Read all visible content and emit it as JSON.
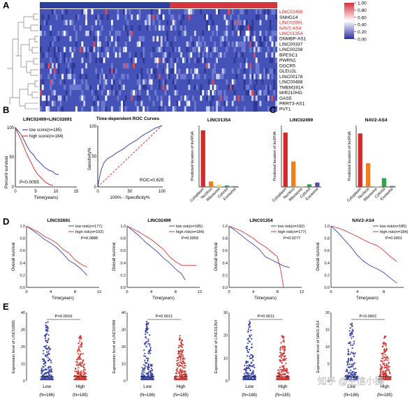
{
  "panel_labels": {
    "A": "A",
    "B": "B",
    "C": "C",
    "D": "D",
    "E": "E"
  },
  "heatmap": {
    "genes": [
      "LINC02499",
      "SNHG14",
      "LINC02691",
      "NAV2-AS4",
      "LINC01354",
      "DNMBP-AS1",
      "LINC00337",
      "LINC00238",
      "BPESC1",
      "PWRN1",
      "DGCR5",
      "DLEU2L",
      "LINC00178",
      "LINC00488",
      "TMEM191A",
      "MIR210HG",
      "GAS5",
      "PRRT3-AS1",
      "PVT1"
    ],
    "highlighted": [
      "LINC02499",
      "LINC02691",
      "NAV2-AS4",
      "LINC01354"
    ],
    "legend_ticks": [
      "1.00",
      "0.80",
      "0.60",
      "0.40",
      "0.20",
      "0.00"
    ],
    "colors": {
      "high": "#d7303a",
      "mid": "#ffffff",
      "low": "#2b2fa0",
      "bar_low": "#2c3f9e",
      "bar_high": "#d3363f",
      "gene_highlight": "#d92226"
    }
  },
  "panel_b": {
    "km": {
      "title": "LINC02499+LINC02691",
      "ylabel": "Percent survival",
      "xlabel": "Time(years)",
      "legend": [
        "low score(n=185)",
        "high score(n=184)"
      ],
      "pvalue": "P<0.0055",
      "x_ticks": [
        "0",
        "5",
        "10",
        "15"
      ],
      "y_ticks": [
        "0",
        "50",
        "100"
      ]
    },
    "roc": {
      "title": "Time-dependent ROC Curves",
      "ylabel": "Sensitivity%",
      "xlabel": "100% - Specificity%",
      "auc": "ROC=0.625",
      "x_ticks": [
        "0",
        "50",
        "100"
      ],
      "y_ticks": [
        "0",
        "50",
        "100"
      ]
    }
  },
  "panel_d": {
    "ylabel": "Overall survival",
    "xlabel": "Time(years)",
    "x_ticks": [
      "0",
      "4",
      "8",
      "12"
    ],
    "x_ticks_short": [
      "0",
      "4",
      "8"
    ],
    "y_ticks": [
      "0.0",
      "0.2",
      "0.4",
      "0.6",
      "0.8",
      "1.0"
    ],
    "plots": [
      {
        "title": "LINC02691",
        "legend": [
          "low risk(n=177)",
          "high risk(n=192)"
        ],
        "pvalue": "P=0.0888"
      },
      {
        "title": "LINC02499",
        "legend": [
          "low risk(n=185)",
          "high risk(n=184)"
        ],
        "pvalue": "P=0.0059"
      },
      {
        "title": "LINC01354",
        "legend": [
          "low risk(n=192)",
          "high risk(n=177)"
        ],
        "pvalue": "P=0.0277"
      },
      {
        "title": "NAV2-AS4",
        "legend": [
          "low risk(n=185)",
          "high risk(n=184)"
        ],
        "pvalue": "P=0.0001"
      }
    ]
  },
  "panel_e": {
    "groups": [
      "Low",
      "High"
    ],
    "plots": [
      {
        "ylabel": "Expression level of LINC02691",
        "pvalue": "P=0.0016",
        "y_ticks": [
          "0",
          "10",
          "20",
          "30",
          "40"
        ],
        "n": [
          "(N=186)",
          "(N=185)"
        ]
      },
      {
        "ylabel": "Expression level of LINC02499",
        "pvalue": "P=0.0011",
        "y_ticks": [
          "0",
          "10",
          "20",
          "30",
          "40"
        ],
        "n": [
          "(N=186)",
          "(N=185)"
        ]
      },
      {
        "ylabel": "Expression level of LINC01354",
        "pvalue": "P=0.0011",
        "y_ticks": [
          "0",
          "10",
          "20",
          "30"
        ],
        "n": [
          "(N=186)",
          "(N=185)"
        ]
      },
      {
        "ylabel": "Expression level of NAV2-AS4",
        "pvalue": "P<0.0001",
        "y_ticks": [
          "0",
          "5",
          "10",
          "15",
          "20"
        ],
        "n": [
          "(N=186)",
          "(N=185)"
        ]
      }
    ]
  },
  "chart_data": [
    {
      "type": "bar",
      "title": "LINC01354",
      "ylabel": "Predicted location of lncRNA",
      "categories": [
        "Cytoplasm",
        "Nucleus",
        "Ribosome",
        "Cytosol",
        "Exosome"
      ],
      "values": [
        0.83,
        0.08,
        0.03,
        0.02,
        0.01
      ],
      "colors": [
        "#d62a2a",
        "#f07e1c",
        "#f3e53f",
        "#2ea34a",
        "#5b4ea3"
      ],
      "ylim": [
        0,
        0.9
      ]
    },
    {
      "type": "bar",
      "title": "LINC02499",
      "ylabel": "Predicted location of lncRNA",
      "categories": [
        "Cytoplasm",
        "Nucleus",
        "Ribosome",
        "Cytosol",
        "Exosome"
      ],
      "values": [
        0.62,
        0.29,
        0.01,
        0.03,
        0.05
      ],
      "colors": [
        "#d62a2a",
        "#f07e1c",
        "#f3e53f",
        "#2ea34a",
        "#5b4ea3"
      ],
      "ylim": [
        0,
        0.7
      ]
    },
    {
      "type": "bar",
      "title": "NAV2-AS4",
      "ylabel": "Predicted location of lncRNA",
      "categories": [
        "Cytoplasm",
        "Nucleus",
        "Ribosome",
        "Cytosol",
        "Exosome"
      ],
      "values": [
        0.61,
        0.27,
        0.01,
        0.1,
        0.01
      ],
      "colors": [
        "#d62a2a",
        "#f07e1c",
        "#f3e53f",
        "#2ea34a",
        "#5b4ea3"
      ],
      "ylim": [
        0,
        0.7
      ]
    },
    {
      "type": "line",
      "title": "Time-dependent ROC Curves",
      "xlabel": "100% - Specificity%",
      "ylabel": "Sensitivity%",
      "series": [
        {
          "name": "ROC",
          "x": [
            0,
            3,
            6,
            10,
            15,
            22,
            30,
            40,
            50,
            60,
            70,
            80,
            90,
            100
          ],
          "y": [
            0,
            18,
            30,
            40,
            46,
            50,
            56,
            62,
            70,
            76,
            84,
            90,
            96,
            100
          ]
        }
      ],
      "xlim": [
        0,
        100
      ],
      "ylim": [
        0,
        100
      ]
    }
  ],
  "watermark": "知乎 @生信小操"
}
